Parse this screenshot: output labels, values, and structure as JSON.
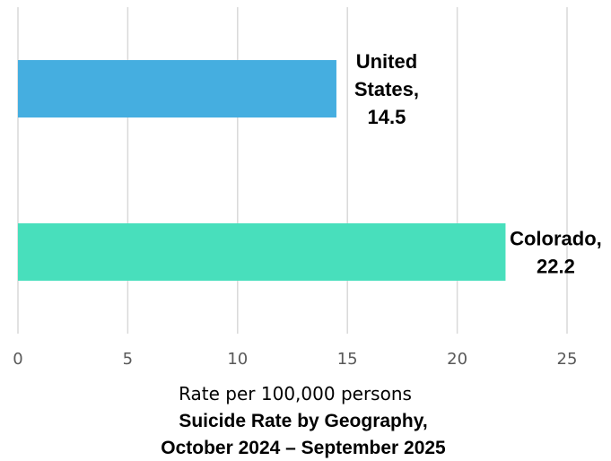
{
  "chart_data": {
    "type": "bar",
    "orientation": "horizontal",
    "categories": [
      "United States",
      "Colorado"
    ],
    "values": [
      14.5,
      22.2
    ],
    "data_labels": [
      [
        "United",
        "States,",
        "14.5"
      ],
      [
        "Colorado,",
        "22.2"
      ]
    ],
    "colors": [
      "#45AEE0",
      "#48DFBC"
    ],
    "xlabel": "Rate per 100,000 persons",
    "title_lines": [
      "Suicide Rate by Geography,",
      "October 2024 – September 2025"
    ],
    "xlim": [
      0,
      25
    ],
    "xticks": [
      0,
      5,
      10,
      15,
      20,
      25
    ],
    "grid": "vertical",
    "legend": "none"
  }
}
